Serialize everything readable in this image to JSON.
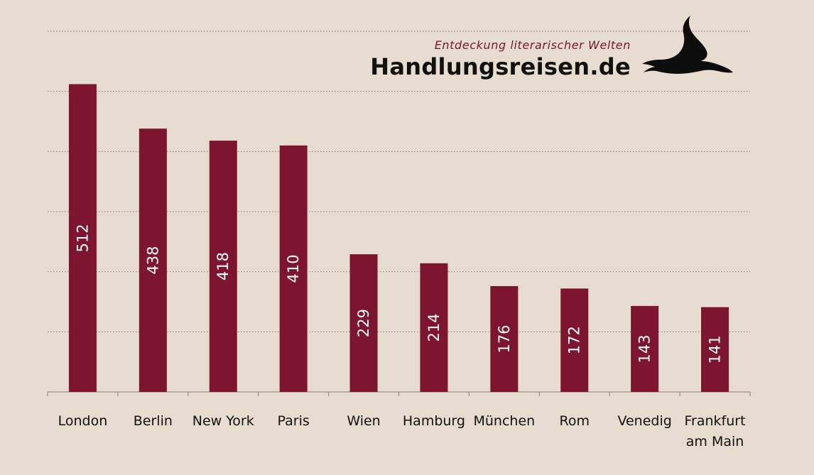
{
  "brand": {
    "tagline": "Entdeckung literarischer Welten",
    "name": "Handlungsreisen.de",
    "logo_icon": "goose-silhouette-icon"
  },
  "colors": {
    "background": "#e6dccf",
    "bar": "#7d1430",
    "bar_label": "#ffffff",
    "grid": "#8a8176",
    "axis": "#9a9186",
    "text": "#111111"
  },
  "chart_data": {
    "type": "bar",
    "categories": [
      "London",
      "Berlin",
      "New York",
      "Paris",
      "Wien",
      "Hamburg",
      "München",
      "Rom",
      "Venedig",
      "Frankfurt am Main"
    ],
    "values": [
      512,
      438,
      418,
      410,
      229,
      214,
      176,
      172,
      143,
      141
    ],
    "title": "",
    "xlabel": "",
    "ylabel": "",
    "ylim": [
      0,
      600
    ],
    "gridlines": [
      100,
      200,
      300,
      400,
      500,
      600
    ],
    "grid": true,
    "grid_style": "dotted",
    "data_labels": "vertical-inside-bar",
    "y_tick_labels": false
  }
}
